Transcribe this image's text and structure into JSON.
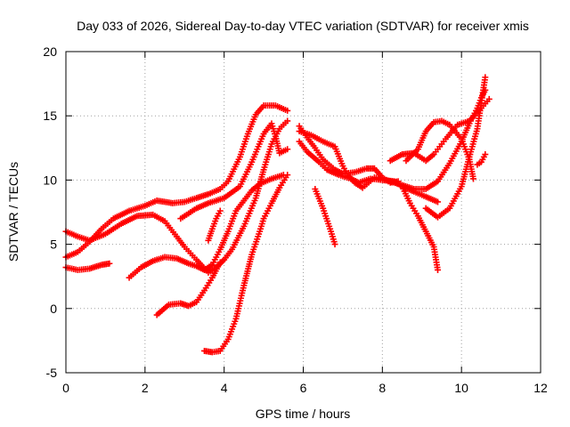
{
  "chart_data": {
    "type": "scatter",
    "title": "Day 033 of 2026, Sidereal Day-to-day VTEC variation (SDTVAR) for receiver xmis",
    "xlabel": "GPS time / hours",
    "ylabel": "SDTVAR / TECUs",
    "xlim": [
      0,
      12
    ],
    "ylim": [
      -5,
      20
    ],
    "xticks": [
      0,
      2,
      4,
      6,
      8,
      10,
      12
    ],
    "yticks": [
      -5,
      0,
      5,
      10,
      15,
      20
    ],
    "grid": true,
    "marker": "+",
    "series_color": "#ff0000",
    "series": [
      {
        "points": [
          [
            0,
            6
          ],
          [
            0.3,
            5.6
          ],
          [
            0.6,
            5.3
          ],
          [
            1.0,
            5.8
          ],
          [
            1.4,
            6.6
          ],
          [
            1.8,
            7.2
          ],
          [
            2.2,
            7.3
          ],
          [
            2.5,
            6.8
          ],
          [
            2.8,
            5.6
          ],
          [
            3.0,
            4.8
          ],
          [
            3.3,
            3.8
          ],
          [
            3.6,
            2.8
          ],
          [
            3.8,
            3.2
          ],
          [
            4.0,
            3.8
          ],
          [
            4.2,
            4.6
          ],
          [
            4.5,
            6.4
          ],
          [
            4.8,
            8.6
          ],
          [
            5.0,
            10.8
          ],
          [
            5.2,
            12.8
          ],
          [
            5.4,
            14.0
          ],
          [
            5.6,
            14.6
          ]
        ]
      },
      {
        "points": [
          [
            0,
            4.0
          ],
          [
            0.3,
            4.4
          ],
          [
            0.6,
            5.2
          ],
          [
            0.9,
            6.2
          ],
          [
            1.2,
            7.0
          ],
          [
            1.6,
            7.6
          ],
          [
            2.0,
            8.0
          ],
          [
            2.3,
            8.4
          ],
          [
            2.7,
            8.2
          ],
          [
            3.0,
            8.3
          ],
          [
            3.3,
            8.6
          ],
          [
            3.6,
            8.9
          ],
          [
            3.9,
            9.3
          ],
          [
            4.1,
            9.9
          ],
          [
            4.4,
            11.8
          ],
          [
            4.6,
            13.6
          ],
          [
            4.8,
            15.1
          ],
          [
            5.0,
            15.8
          ],
          [
            5.3,
            15.8
          ],
          [
            5.6,
            15.4
          ]
        ]
      },
      {
        "points": [
          [
            0,
            3.2
          ],
          [
            0.3,
            3.0
          ],
          [
            0.6,
            3.1
          ],
          [
            0.9,
            3.4
          ],
          [
            1.1,
            3.5
          ]
        ]
      },
      {
        "points": [
          [
            1.6,
            2.4
          ],
          [
            1.9,
            3.2
          ],
          [
            2.2,
            3.7
          ],
          [
            2.5,
            4.0
          ],
          [
            2.8,
            3.9
          ],
          [
            3.1,
            3.5
          ],
          [
            3.3,
            3.3
          ],
          [
            3.5,
            3.0
          ],
          [
            3.7,
            3.4
          ],
          [
            3.9,
            4.6
          ],
          [
            4.1,
            6.0
          ],
          [
            4.3,
            7.6
          ],
          [
            4.5,
            8.4
          ],
          [
            4.7,
            9.2
          ],
          [
            4.9,
            9.7
          ],
          [
            5.2,
            10.1
          ],
          [
            5.5,
            10.4
          ]
        ]
      },
      {
        "points": [
          [
            2.3,
            -0.5
          ],
          [
            2.6,
            0.3
          ],
          [
            2.9,
            0.4
          ],
          [
            3.1,
            0.2
          ],
          [
            3.3,
            0.5
          ],
          [
            3.5,
            1.4
          ],
          [
            3.7,
            2.4
          ],
          [
            3.9,
            3.6
          ]
        ]
      },
      {
        "points": [
          [
            3.5,
            -3.3
          ],
          [
            3.7,
            -3.4
          ],
          [
            3.9,
            -3.3
          ],
          [
            4.1,
            -2.4
          ],
          [
            4.3,
            -0.8
          ],
          [
            4.5,
            1.8
          ],
          [
            4.7,
            4.2
          ],
          [
            4.9,
            6.0
          ],
          [
            5.0,
            7.0
          ],
          [
            5.2,
            8.2
          ],
          [
            5.4,
            9.4
          ],
          [
            5.6,
            10.4
          ]
        ]
      },
      {
        "points": [
          [
            2.9,
            7.0
          ],
          [
            3.3,
            7.8
          ],
          [
            3.6,
            8.2
          ],
          [
            4.0,
            8.6
          ],
          [
            4.4,
            9.5
          ],
          [
            4.7,
            11.4
          ],
          [
            5.0,
            13.6
          ],
          [
            5.2,
            14.4
          ],
          [
            5.3,
            13.4
          ],
          [
            5.4,
            12.1
          ],
          [
            5.6,
            12.4
          ]
        ]
      },
      {
        "points": [
          [
            3.6,
            5.3
          ],
          [
            3.7,
            6.2
          ],
          [
            3.8,
            7.0
          ],
          [
            3.9,
            7.6
          ]
        ]
      },
      {
        "points": [
          [
            5.9,
            14.2
          ],
          [
            6.1,
            13.3
          ],
          [
            6.3,
            12.5
          ],
          [
            6.5,
            11.6
          ],
          [
            6.8,
            10.8
          ],
          [
            7.0,
            10.5
          ],
          [
            7.3,
            10.6
          ],
          [
            7.6,
            10.9
          ],
          [
            7.8,
            10.9
          ],
          [
            8.0,
            10.2
          ],
          [
            8.2,
            9.8
          ],
          [
            8.4,
            9.9
          ]
        ]
      },
      {
        "points": [
          [
            6.3,
            9.3
          ],
          [
            6.5,
            7.8
          ],
          [
            6.7,
            6.0
          ],
          [
            6.8,
            5.0
          ]
        ]
      },
      {
        "points": [
          [
            5.9,
            13.0
          ],
          [
            6.1,
            12.2
          ],
          [
            6.4,
            11.4
          ],
          [
            6.6,
            10.8
          ],
          [
            6.9,
            10.4
          ],
          [
            7.2,
            10.1
          ],
          [
            7.4,
            9.8
          ],
          [
            7.7,
            10.1
          ],
          [
            8.0,
            10.0
          ],
          [
            8.3,
            9.9
          ],
          [
            8.5,
            9.5
          ],
          [
            8.8,
            9.1
          ],
          [
            9.1,
            8.7
          ],
          [
            9.4,
            8.3
          ]
        ]
      },
      {
        "points": [
          [
            5.9,
            13.8
          ],
          [
            6.2,
            13.5
          ],
          [
            6.5,
            13.0
          ],
          [
            6.8,
            12.6
          ],
          [
            7.0,
            11.1
          ],
          [
            7.1,
            10.5
          ],
          [
            7.3,
            9.8
          ],
          [
            7.5,
            9.4
          ],
          [
            7.8,
            10.2
          ],
          [
            8.1,
            10.0
          ],
          [
            8.5,
            9.6
          ],
          [
            8.8,
            9.3
          ],
          [
            9.1,
            9.3
          ],
          [
            9.4,
            9.9
          ],
          [
            9.7,
            11.3
          ],
          [
            10.0,
            13.0
          ],
          [
            10.2,
            14.4
          ],
          [
            10.4,
            15.6
          ],
          [
            10.5,
            16.4
          ],
          [
            10.6,
            17.0
          ]
        ]
      },
      {
        "points": [
          [
            8.5,
            9.5
          ],
          [
            8.7,
            8.2
          ],
          [
            8.9,
            7.2
          ],
          [
            9.1,
            6.0
          ],
          [
            9.3,
            4.8
          ],
          [
            9.4,
            3.0
          ]
        ]
      },
      {
        "points": [
          [
            8.2,
            11.5
          ],
          [
            8.5,
            12.0
          ],
          [
            8.8,
            12.1
          ],
          [
            9.1,
            11.5
          ],
          [
            9.3,
            12.0
          ],
          [
            9.6,
            13.2
          ],
          [
            9.9,
            14.3
          ],
          [
            10.2,
            14.6
          ],
          [
            10.5,
            15.6
          ],
          [
            10.7,
            16.3
          ]
        ]
      },
      {
        "points": [
          [
            8.6,
            11.5
          ],
          [
            8.9,
            12.4
          ],
          [
            9.1,
            13.8
          ],
          [
            9.3,
            14.5
          ],
          [
            9.5,
            14.6
          ],
          [
            9.7,
            14.3
          ],
          [
            10.0,
            13.2
          ],
          [
            10.2,
            11.6
          ],
          [
            10.3,
            10.1
          ]
        ]
      },
      {
        "points": [
          [
            9.1,
            7.8
          ],
          [
            9.4,
            7.1
          ],
          [
            9.7,
            7.8
          ],
          [
            10.0,
            9.5
          ],
          [
            10.2,
            11.8
          ],
          [
            10.4,
            14.0
          ],
          [
            10.5,
            16.0
          ],
          [
            10.6,
            18.0
          ]
        ]
      },
      {
        "points": [
          [
            10.4,
            11.2
          ],
          [
            10.5,
            11.4
          ],
          [
            10.6,
            12.0
          ]
        ]
      }
    ]
  }
}
